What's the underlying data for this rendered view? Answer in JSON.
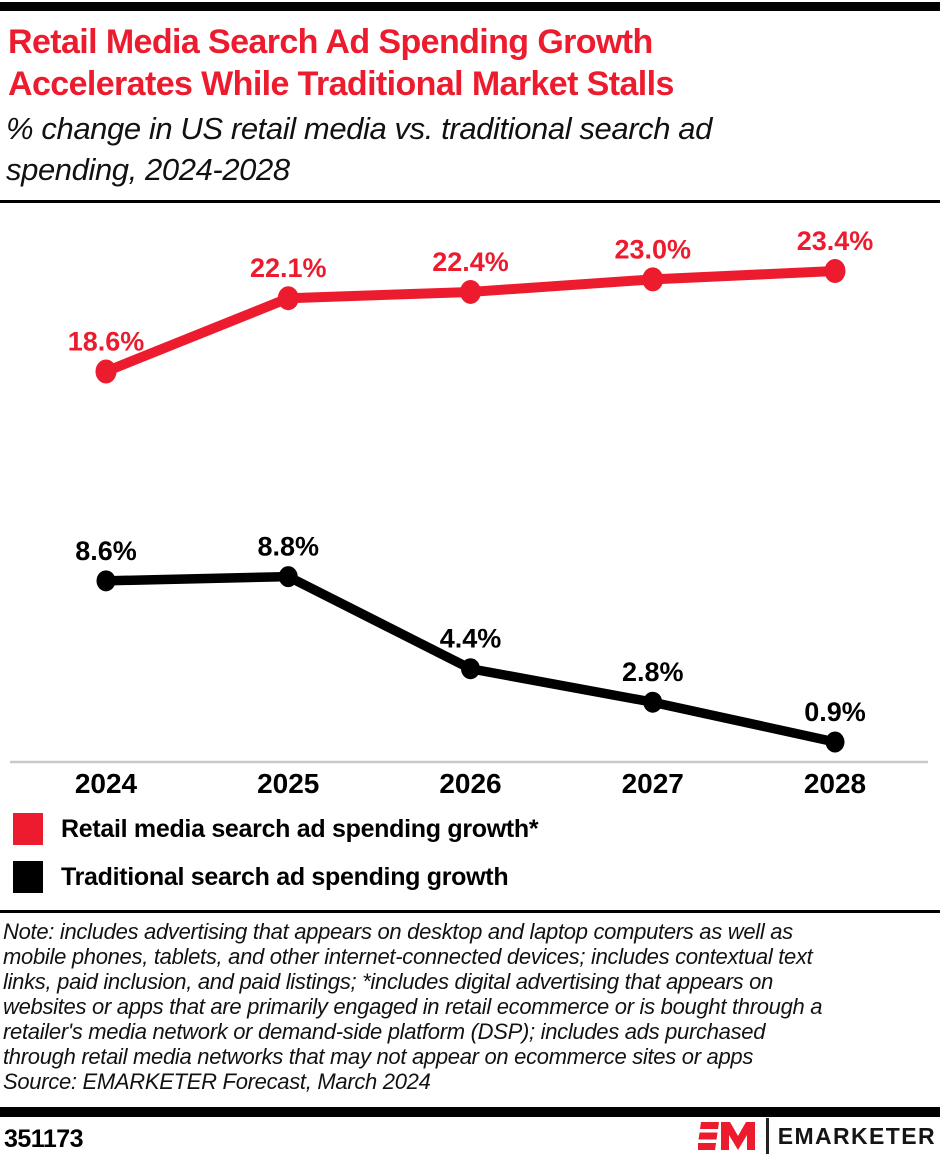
{
  "header": {
    "title_line1": "Retail Media Search Ad Spending Growth",
    "title_line2": "Accelerates While Traditional Market Stalls",
    "subtitle_line1": "% change in US retail media vs. traditional search ad",
    "subtitle_line2": "spending, 2024-2028"
  },
  "colors": {
    "accent_red": "#EC1B2E",
    "series_black": "#000000",
    "axis_gray": "#C9C9C9"
  },
  "chart_data": {
    "type": "line",
    "title": "Retail Media Search Ad Spending Growth Accelerates While Traditional Market Stalls",
    "subtitle": "% change in US retail media vs. traditional search ad spending, 2024-2028",
    "xlabel": "",
    "ylabel": "% change",
    "categories": [
      "2024",
      "2025",
      "2026",
      "2027",
      "2028"
    ],
    "series": [
      {
        "name": "Retail media search ad spending growth*",
        "color": "#EC1B2E",
        "values": [
          18.6,
          22.1,
          22.4,
          23.0,
          23.4
        ],
        "labels": [
          "18.6%",
          "22.1%",
          "22.4%",
          "23.0%",
          "23.4%"
        ]
      },
      {
        "name": "Traditional search ad spending growth",
        "color": "#000000",
        "values": [
          8.6,
          8.8,
          4.4,
          2.8,
          0.9
        ],
        "labels": [
          "8.6%",
          "8.8%",
          "4.4%",
          "2.8%",
          "0.9%"
        ]
      }
    ],
    "ylim": [
      0,
      26
    ],
    "grid": false,
    "legend_position": "bottom-left",
    "data_labels_shown": true
  },
  "note": {
    "lines": [
      "Note: includes advertising that appears on desktop and laptop computers as well as",
      "mobile phones, tablets, and other internet-connected devices; includes contextual text",
      "links, paid inclusion, and paid listings; *includes digital advertising that appears on",
      "websites or apps that are primarily engaged in retail ecommerce or is bought through a",
      "retailer's media network or demand-side platform (DSP); includes ads purchased",
      "through retail media networks that may not appear on ecommerce sites or apps"
    ],
    "source_text": "Source: EMARKETER Forecast, March 2024"
  },
  "footer": {
    "chart_id": "351173",
    "brand_mark": "EM",
    "brand_name": "EMARKETER"
  }
}
